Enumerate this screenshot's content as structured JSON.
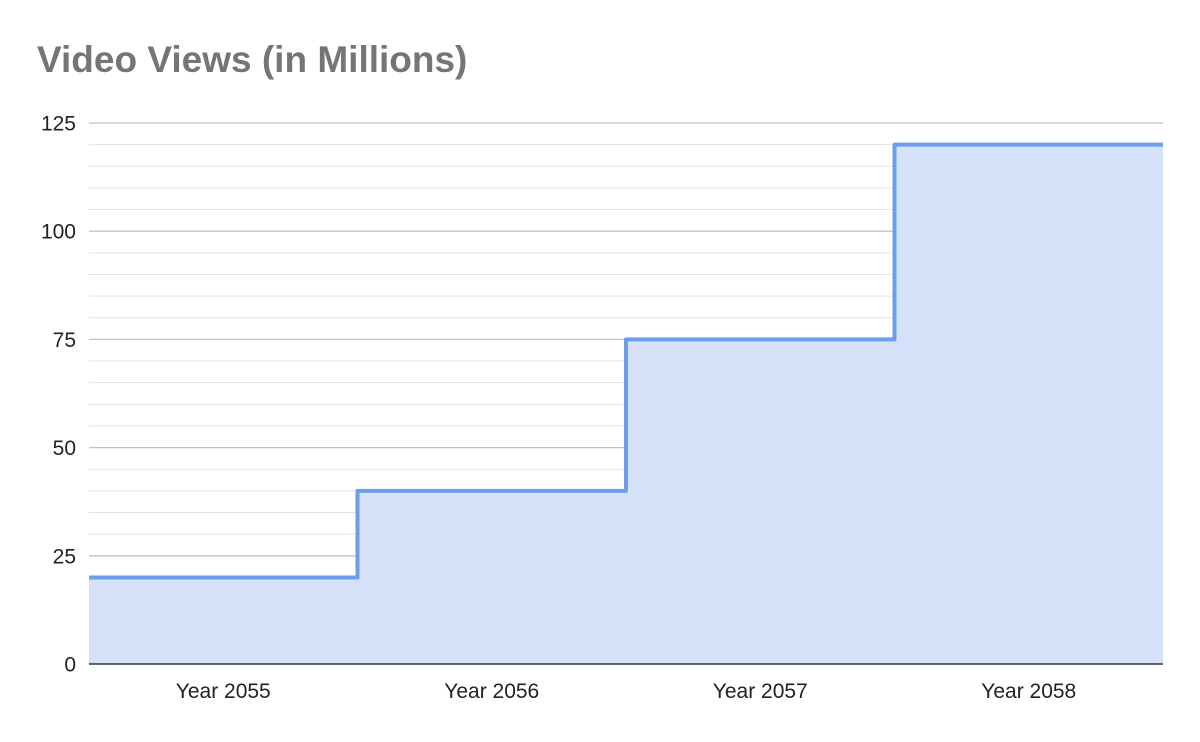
{
  "chart_data": {
    "type": "area",
    "subtype": "stepped",
    "title": "Video Views (in Millions)",
    "xlabel": "",
    "ylabel": "",
    "categories": [
      "Year 2055",
      "Year 2056",
      "Year 2057",
      "Year 2058"
    ],
    "series": [
      {
        "values": [
          20,
          40,
          75,
          120
        ]
      }
    ],
    "ylim": [
      0,
      125
    ],
    "yticks": [
      0,
      25,
      50,
      75,
      100,
      125
    ],
    "minor_gridlines_per_major": 5,
    "grid": true,
    "legend": "none",
    "colors": {
      "line": "#6d9eeb",
      "fill": "#d4e1f8",
      "major_grid": "#c4c4c4",
      "minor_grid": "#e3e3e3",
      "axis": "#333333",
      "title": "#757575"
    }
  }
}
